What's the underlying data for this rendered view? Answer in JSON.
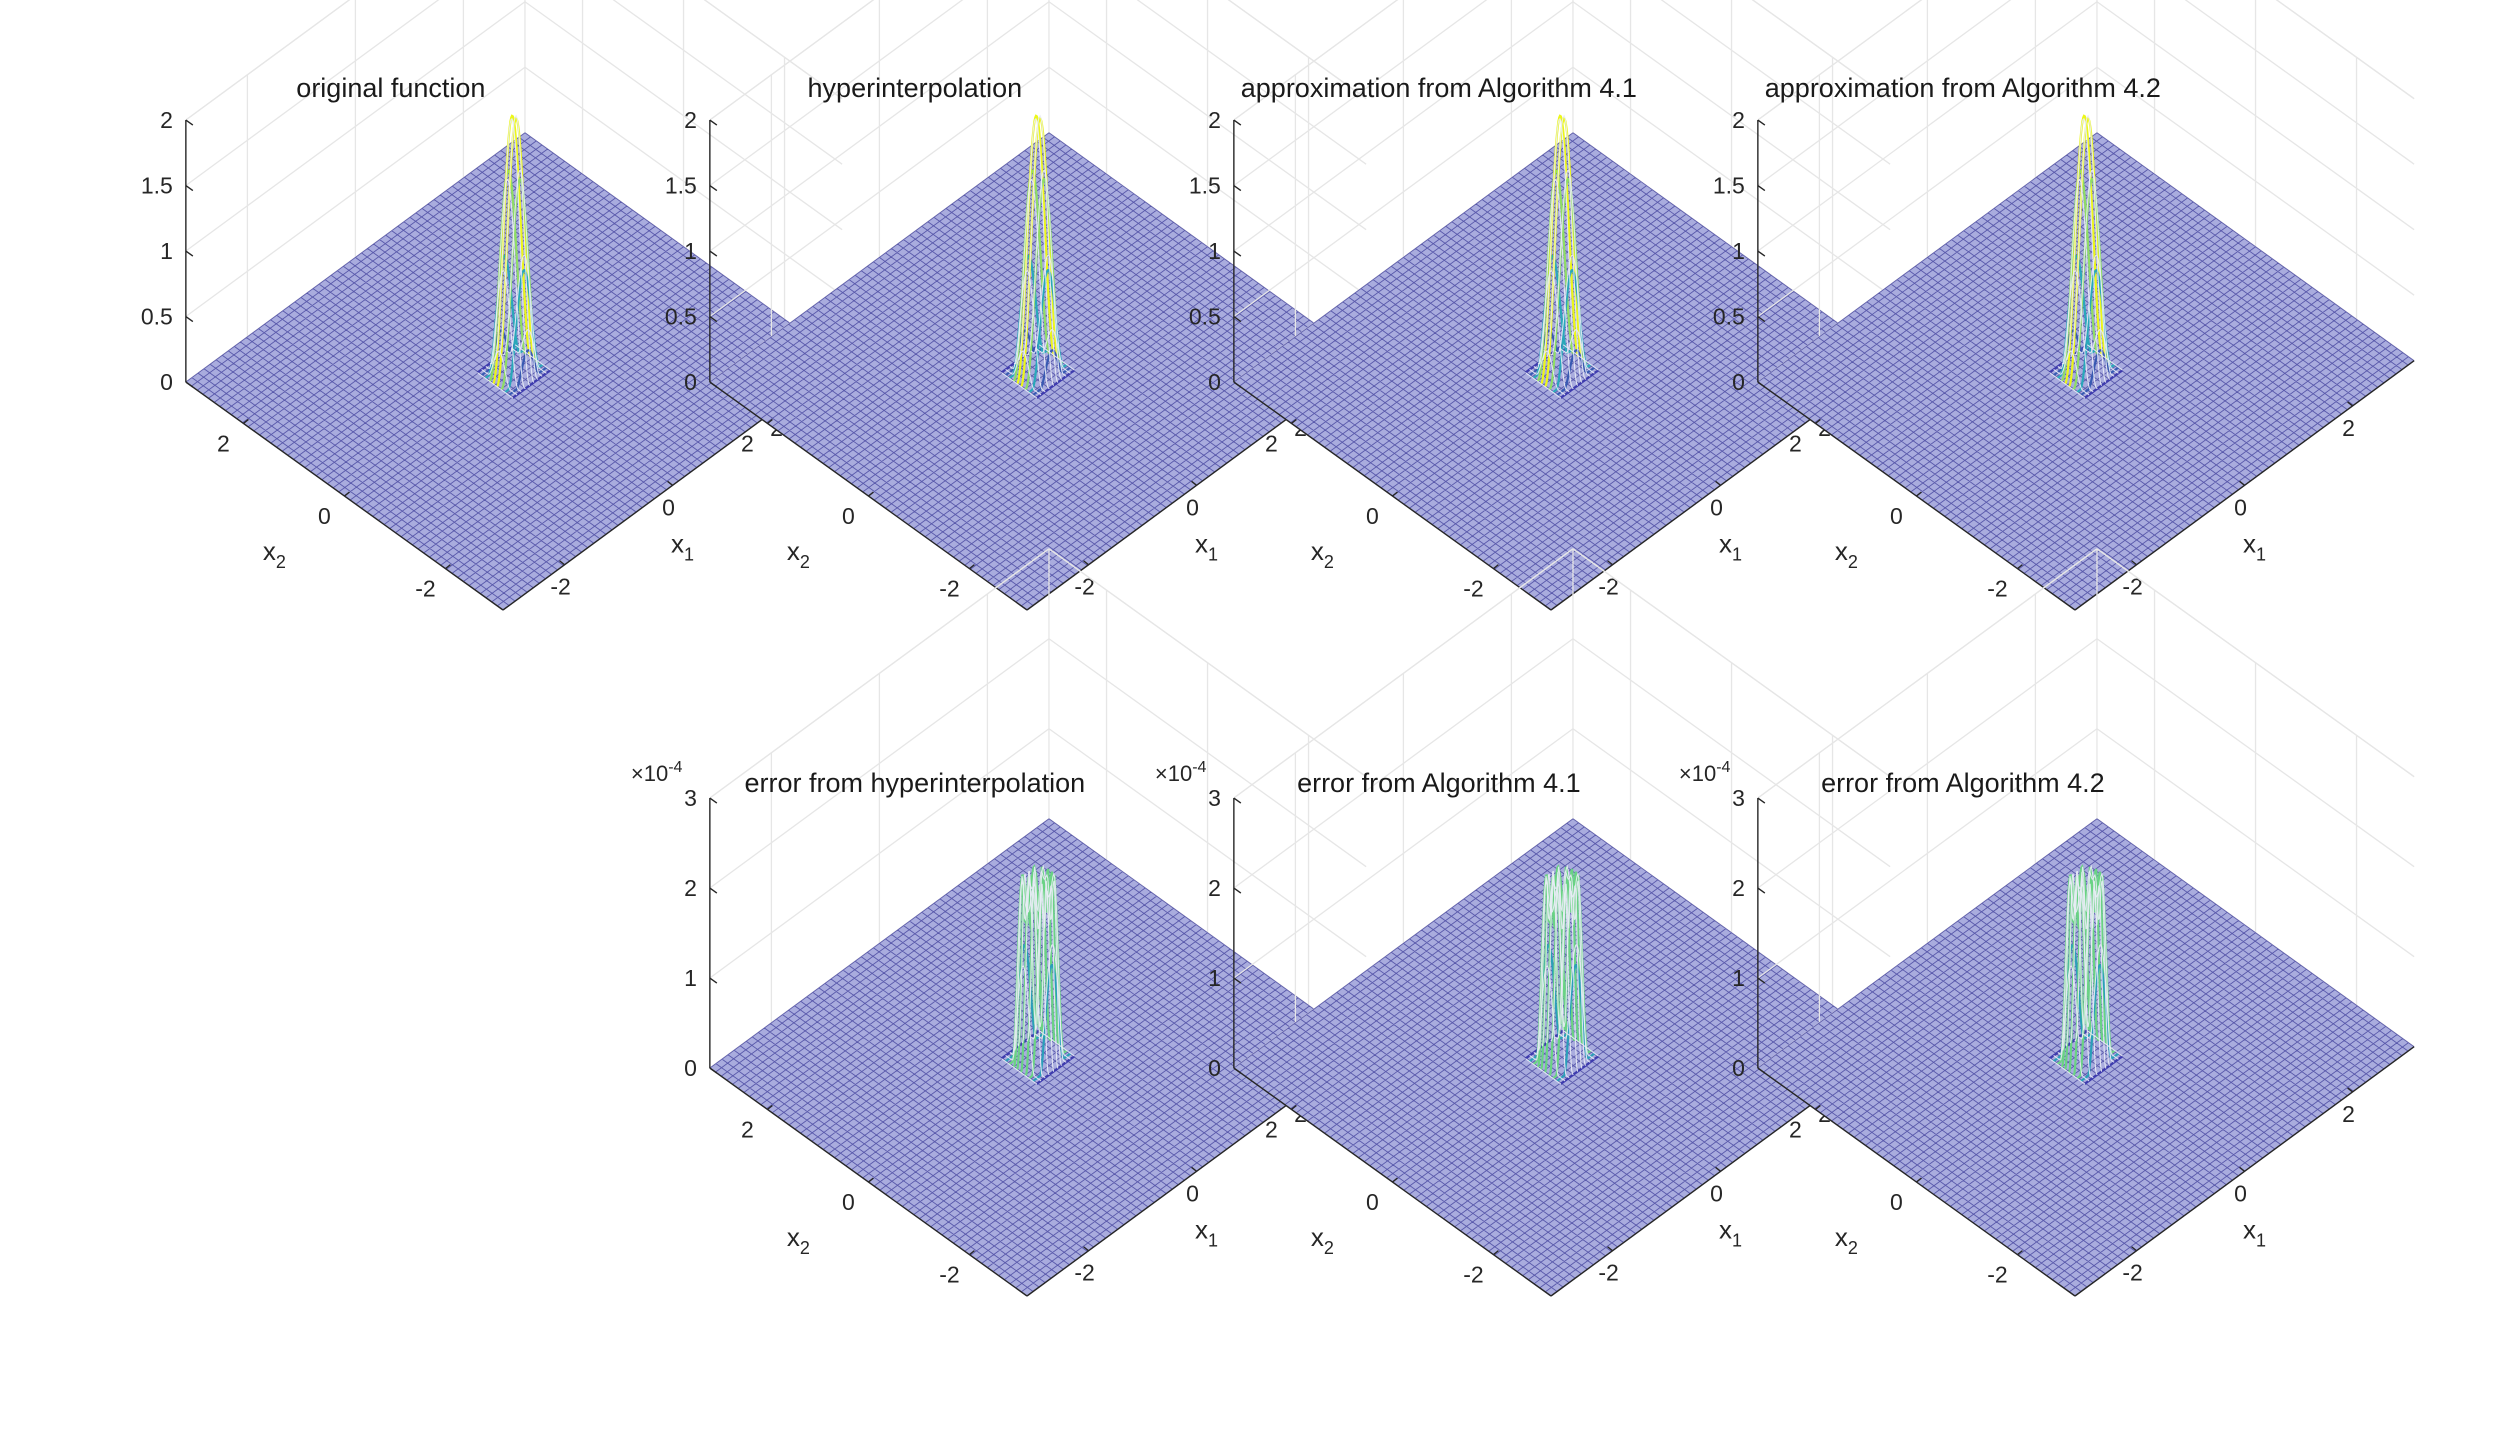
{
  "chart_data": [
    {
      "type": "surface",
      "title": "original function",
      "xlabel": "x1",
      "ylabel": "x2",
      "xlim": [
        -3.14,
        3.14
      ],
      "ylim": [
        -3.14,
        3.14
      ],
      "zlim": [
        0,
        2
      ],
      "xticks": [
        "-2",
        "0",
        "2"
      ],
      "yticks": [
        "-2",
        "0",
        "2"
      ],
      "zticks": [
        "0",
        "0.5",
        "1",
        "1.5",
        "2"
      ],
      "z_exponent": "",
      "peak": 2.0,
      "peak_width": 0.35,
      "shape": "single-peak",
      "colormap": "parula",
      "grid": true
    },
    {
      "type": "surface",
      "title": "hyperinterpolation",
      "xlabel": "x1",
      "ylabel": "x2",
      "xlim": [
        -3.14,
        3.14
      ],
      "ylim": [
        -3.14,
        3.14
      ],
      "zlim": [
        0,
        2
      ],
      "xticks": [
        "-2",
        "0",
        "2"
      ],
      "yticks": [
        "-2",
        "0",
        "2"
      ],
      "zticks": [
        "0",
        "0.5",
        "1",
        "1.5",
        "2"
      ],
      "z_exponent": "",
      "peak": 2.0,
      "peak_width": 0.35,
      "shape": "single-peak",
      "colormap": "parula",
      "grid": true
    },
    {
      "type": "surface",
      "title": "approximation from Algorithm 4.1",
      "xlabel": "x1",
      "ylabel": "x2",
      "xlim": [
        -3.14,
        3.14
      ],
      "ylim": [
        -3.14,
        3.14
      ],
      "zlim": [
        0,
        2
      ],
      "xticks": [
        "-2",
        "0",
        "2"
      ],
      "yticks": [
        "-2",
        "0",
        "2"
      ],
      "zticks": [
        "0",
        "0.5",
        "1",
        "1.5",
        "2"
      ],
      "z_exponent": "",
      "peak": 2.0,
      "peak_width": 0.35,
      "shape": "single-peak",
      "colormap": "parula",
      "grid": true
    },
    {
      "type": "surface",
      "title": "approximation from Algorithm 4.2",
      "xlabel": "x1",
      "ylabel": "x2",
      "xlim": [
        -3.14,
        3.14
      ],
      "ylim": [
        -3.14,
        3.14
      ],
      "zlim": [
        0,
        2
      ],
      "xticks": [
        "-2",
        "0",
        "2"
      ],
      "yticks": [
        "-2",
        "0",
        "2"
      ],
      "zticks": [
        "0",
        "0.5",
        "1",
        "1.5",
        "2"
      ],
      "z_exponent": "",
      "peak": 2.0,
      "peak_width": 0.35,
      "shape": "single-peak",
      "colormap": "parula",
      "grid": true
    },
    {
      "type": "surface",
      "title": "error from hyperinterpolation",
      "xlabel": "x1",
      "ylabel": "x2",
      "xlim": [
        -3.14,
        3.14
      ],
      "ylim": [
        -3.14,
        3.14
      ],
      "zlim": [
        0,
        3
      ],
      "xticks": [
        "-2",
        "0",
        "2"
      ],
      "yticks": [
        "-2",
        "0",
        "2"
      ],
      "zticks": [
        "0",
        "1",
        "2",
        "3"
      ],
      "z_exponent": "-4",
      "peak": 2.75,
      "peak_width": 0.35,
      "shape": "ring-error",
      "colormap": "parula",
      "grid": true
    },
    {
      "type": "surface",
      "title": "error from Algorithm 4.1",
      "xlabel": "x1",
      "ylabel": "x2",
      "xlim": [
        -3.14,
        3.14
      ],
      "ylim": [
        -3.14,
        3.14
      ],
      "zlim": [
        0,
        3
      ],
      "xticks": [
        "-2",
        "0",
        "2"
      ],
      "yticks": [
        "-2",
        "0",
        "2"
      ],
      "zticks": [
        "0",
        "1",
        "2",
        "3"
      ],
      "z_exponent": "-4",
      "peak": 2.75,
      "peak_width": 0.35,
      "shape": "ring-error",
      "colormap": "parula",
      "grid": true
    },
    {
      "type": "surface",
      "title": "error from Algorithm 4.2",
      "xlabel": "x1",
      "ylabel": "x2",
      "xlim": [
        -3.14,
        3.14
      ],
      "ylim": [
        -3.14,
        3.14
      ],
      "zlim": [
        0,
        3
      ],
      "xticks": [
        "-2",
        "0",
        "2"
      ],
      "yticks": [
        "-2",
        "0",
        "2"
      ],
      "zticks": [
        "0",
        "1",
        "2",
        "3"
      ],
      "z_exponent": "-4",
      "peak": 2.75,
      "peak_width": 0.35,
      "shape": "ring-error",
      "colormap": "parula",
      "grid": true
    }
  ],
  "colors": {
    "mesh_base": "#3f3d99",
    "face_base": "#a9acde",
    "axis": "#262626",
    "grid": "#e6e6e6",
    "peak_high": "#f9fb0e",
    "peak_mid": "#24bfbd",
    "peak_low": "#3e3bae"
  }
}
